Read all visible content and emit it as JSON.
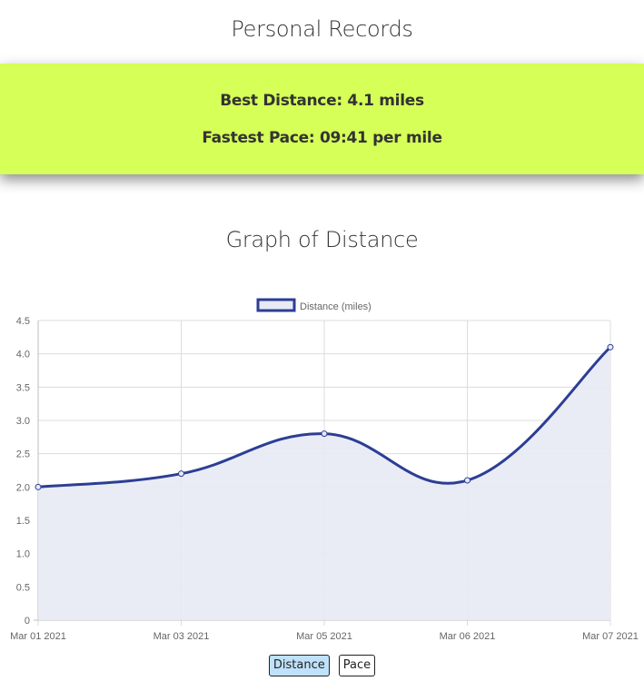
{
  "page": {
    "title": "Personal Records"
  },
  "records": {
    "best_distance": "Best Distance: 4.1 miles",
    "fastest_pace": "Fastest Pace: 09:41 per mile"
  },
  "graph": {
    "title": "Graph of Distance"
  },
  "toggle": {
    "distance_label": "Distance",
    "pace_label": "Pace",
    "active": "Distance"
  },
  "colors": {
    "card_background": "#d6ff57",
    "line": "#2c3e94",
    "area_fill": "#e8eaf4",
    "active_button": "#bfe1fb"
  },
  "chart_data": {
    "type": "line",
    "x": [
      "Mar 01 2021",
      "Mar 03 2021",
      "Mar 05 2021",
      "Mar 06 2021",
      "Mar 07 2021"
    ],
    "series": [
      {
        "name": "Distance (miles)",
        "values": [
          2.0,
          2.2,
          2.8,
          2.1,
          4.1
        ]
      }
    ],
    "y_ticks": [
      "0",
      "0.5",
      "1.0",
      "1.5",
      "2.0",
      "2.5",
      "3.0",
      "3.5",
      "4.0",
      "4.5"
    ],
    "ylim": [
      0,
      4.5
    ],
    "grid": true,
    "legend_position": "top-center",
    "fill": true,
    "curve": "smooth"
  }
}
